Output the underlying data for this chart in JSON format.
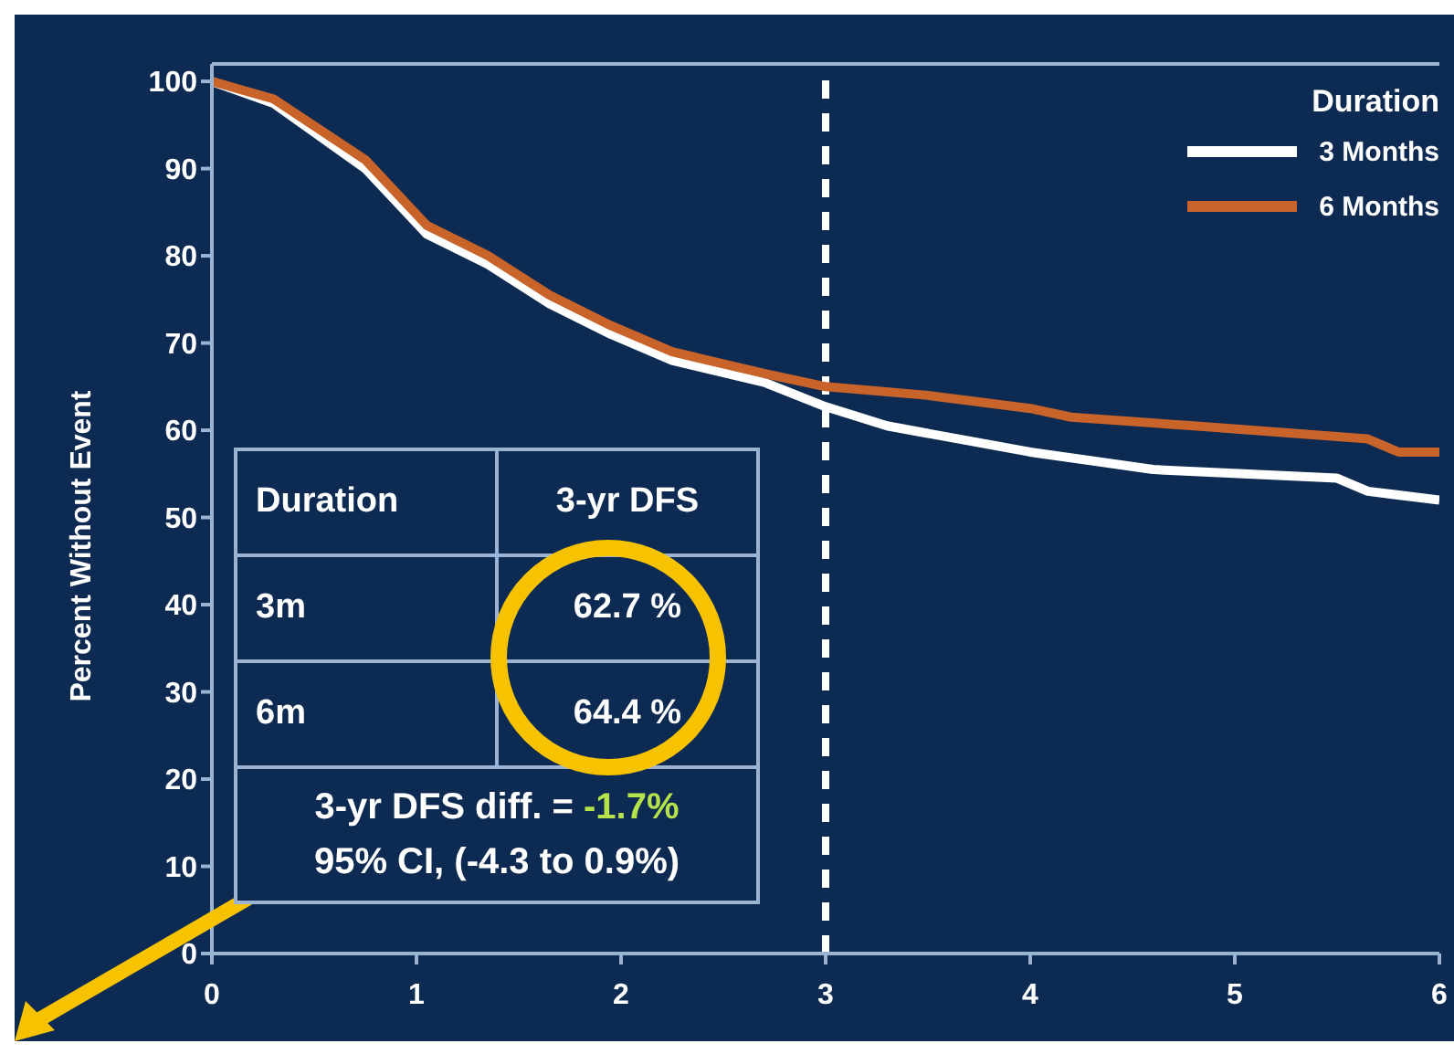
{
  "chart_data": {
    "type": "line",
    "ylabel": "Percent Without Event",
    "legend_title": "Duration",
    "series": [
      {
        "name": "3 Months",
        "color": "#ffffff",
        "x": [
          0,
          0.3,
          0.75,
          1.05,
          1.35,
          1.65,
          1.95,
          2.25,
          2.7,
          3,
          3.3,
          4,
          4.6,
          5.5,
          5.65,
          6
        ],
        "values": [
          100,
          97.5,
          90,
          82.5,
          79,
          74.5,
          71,
          68,
          65.5,
          62.7,
          60.5,
          57.5,
          55.5,
          54.5,
          53,
          52
        ]
      },
      {
        "name": "6 Months",
        "color": "#c8632a",
        "x": [
          0,
          0.3,
          0.75,
          1.05,
          1.35,
          1.65,
          1.95,
          2.25,
          2.7,
          3,
          3.5,
          4,
          4.2,
          4.8,
          5.65,
          5.8,
          6
        ],
        "values": [
          100,
          98,
          91,
          83.5,
          80,
          75.5,
          72,
          69,
          66.5,
          65,
          64,
          62.5,
          61.5,
          60.5,
          59,
          57.5,
          57.5
        ]
      }
    ],
    "xlim": [
      0,
      6
    ],
    "xticks": [
      0,
      1,
      2,
      3,
      4,
      5,
      6
    ],
    "ylim": [
      0,
      102
    ],
    "yticks": [
      0,
      10,
      20,
      30,
      40,
      50,
      60,
      70,
      80,
      90,
      100
    ],
    "ref_lines": [
      {
        "axis": "x",
        "value": 3,
        "color": "#ffffff",
        "line_style": "dashed"
      }
    ],
    "legend": "top right",
    "grid": false,
    "marker": "none",
    "line_style": "solid",
    "annotations": [
      "Duration",
      "3-yr DFS",
      "3m",
      "62.7 %",
      "6m",
      "64.4 %",
      "3-yr DFS diff. = -1.7%",
      "95% CI, (-4.3 to 0.9%)"
    ]
  }
}
